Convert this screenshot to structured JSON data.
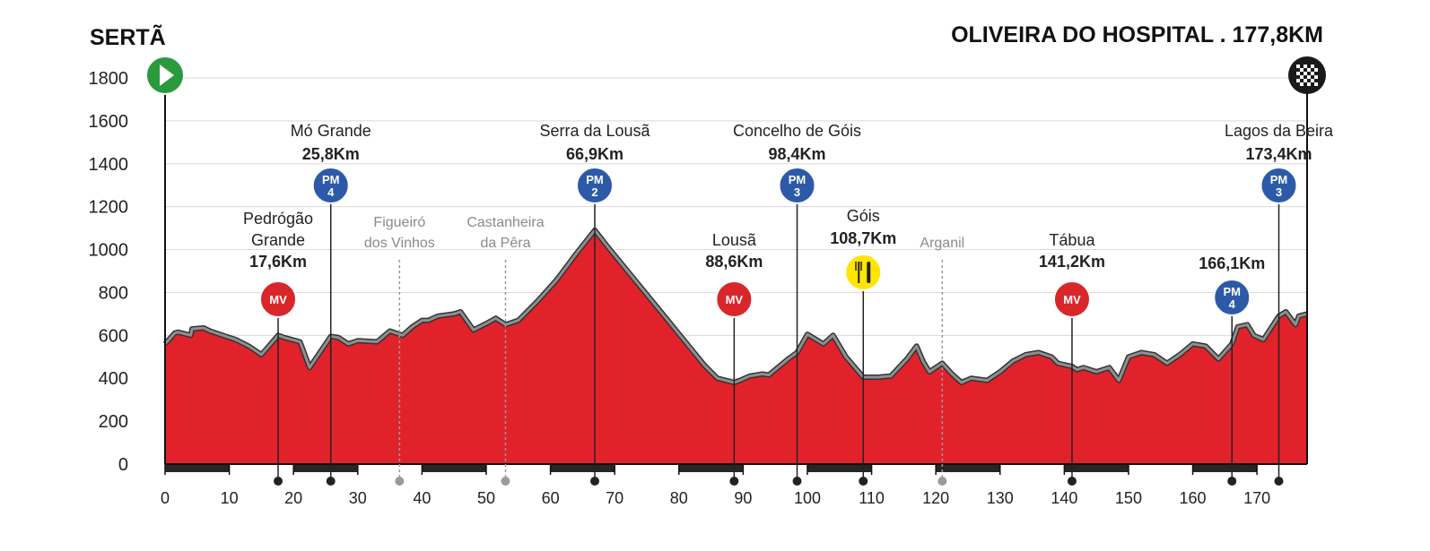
{
  "title_start": "SERTÃ",
  "title_end": "OLIVEIRA DO HOSPITAL . 177,8KM",
  "colors": {
    "profile_fill": "#e2222b",
    "profile_outline": "#8f8f8f",
    "pm_badge": "#2c5aa8",
    "mv_badge": "#d9262a",
    "feed_badge": "#ffe500",
    "start_badge": "#2a9a3c",
    "finish_badge": "#1a1a1a",
    "grid": "#d9d9d9",
    "marker_line": "#222222",
    "minor_marker": "#9a9a9a"
  },
  "chart_data": {
    "type": "area",
    "xlabel": "",
    "ylabel": "",
    "xlim": [
      0,
      177.8
    ],
    "ylim": [
      0,
      1800
    ],
    "x_ticks": [
      0,
      10,
      20,
      30,
      40,
      50,
      60,
      70,
      80,
      90,
      100,
      110,
      120,
      130,
      140,
      150,
      160,
      170
    ],
    "y_ticks": [
      0,
      200,
      400,
      600,
      800,
      1000,
      1200,
      1400,
      1600,
      1800
    ],
    "grid": true,
    "profile": {
      "x": [
        0,
        1.5,
        2,
        4,
        4.2,
        6,
        7,
        9,
        11,
        13,
        15,
        17.6,
        18.5,
        21,
        22.5,
        25.8,
        27,
        28.5,
        30,
        33,
        35,
        37,
        38.5,
        40,
        41,
        42.5,
        45,
        46,
        48,
        50,
        51.5,
        53,
        55,
        58,
        61,
        64,
        66.9,
        69,
        72,
        75,
        78,
        81,
        84,
        86,
        88.6,
        89.5,
        91,
        93,
        94,
        97,
        98.4,
        100,
        102.5,
        104,
        106,
        108.7,
        111,
        113,
        115.5,
        117,
        118,
        119,
        121,
        122.5,
        124,
        125.5,
        128,
        130,
        132,
        134,
        136,
        138,
        139,
        141.2,
        142,
        143,
        145,
        147,
        148.5,
        150,
        152,
        154,
        156,
        158,
        160,
        162,
        164,
        166.1,
        167,
        168.5,
        169.5,
        171,
        173.4,
        174.5,
        176,
        176.5,
        177.8
      ],
      "y": [
        560,
        610,
        615,
        600,
        630,
        635,
        620,
        600,
        580,
        550,
        510,
        600,
        590,
        570,
        450,
        595,
        590,
        560,
        575,
        570,
        620,
        600,
        640,
        670,
        670,
        690,
        700,
        710,
        625,
        655,
        680,
        650,
        670,
        760,
        860,
        980,
        1090,
        1010,
        900,
        790,
        680,
        570,
        460,
        400,
        380,
        390,
        410,
        420,
        415,
        490,
        520,
        605,
        560,
        600,
        500,
        405,
        405,
        410,
        490,
        550,
        480,
        430,
        470,
        420,
        380,
        400,
        390,
        430,
        480,
        510,
        520,
        500,
        470,
        455,
        440,
        450,
        430,
        450,
        390,
        500,
        520,
        510,
        470,
        510,
        560,
        550,
        490,
        560,
        640,
        650,
        600,
        580,
        690,
        710,
        650,
        690,
        700
      ]
    },
    "climbs": [
      {
        "name": "Mó Grande",
        "km_label": "25,8Km",
        "x": 25.8,
        "category": "PM",
        "cat_num": "4"
      },
      {
        "name": "Serra da Lousã",
        "km_label": "66,9Km",
        "x": 66.9,
        "category": "PM",
        "cat_num": "2"
      },
      {
        "name": "Concelho de Góis",
        "km_label": "98,4Km",
        "x": 98.4,
        "category": "PM",
        "cat_num": "3"
      },
      {
        "name": "Lagos da Beira",
        "km_label": "173,4Km",
        "x": 173.4,
        "category": "PM",
        "cat_num": "3"
      }
    ],
    "sprints": [
      {
        "name_lines": [
          "Pedrógão",
          "Grande"
        ],
        "km_label": "17,6Km",
        "x": 17.6,
        "category": "MV"
      },
      {
        "name_lines": [
          "Lousã"
        ],
        "km_label": "88,6Km",
        "x": 88.6,
        "category": "MV"
      },
      {
        "name_lines": [
          "Tábua"
        ],
        "km_label": "141,2Km",
        "x": 141.2,
        "category": "MV"
      }
    ],
    "extra_climb": {
      "km_label": "166,1Km",
      "x": 166.1,
      "category": "PM",
      "cat_num": "4"
    },
    "feed_zone": {
      "name": "Góis",
      "km_label": "108,7Km",
      "x": 108.7
    },
    "places": [
      {
        "name_lines": [
          "Figueiró",
          "dos Vinhos"
        ],
        "x": 36.5
      },
      {
        "name_lines": [
          "Castanheira",
          "da Pêra"
        ],
        "x": 53
      },
      {
        "name_lines": [
          "Arganil"
        ],
        "x": 121
      }
    ]
  }
}
